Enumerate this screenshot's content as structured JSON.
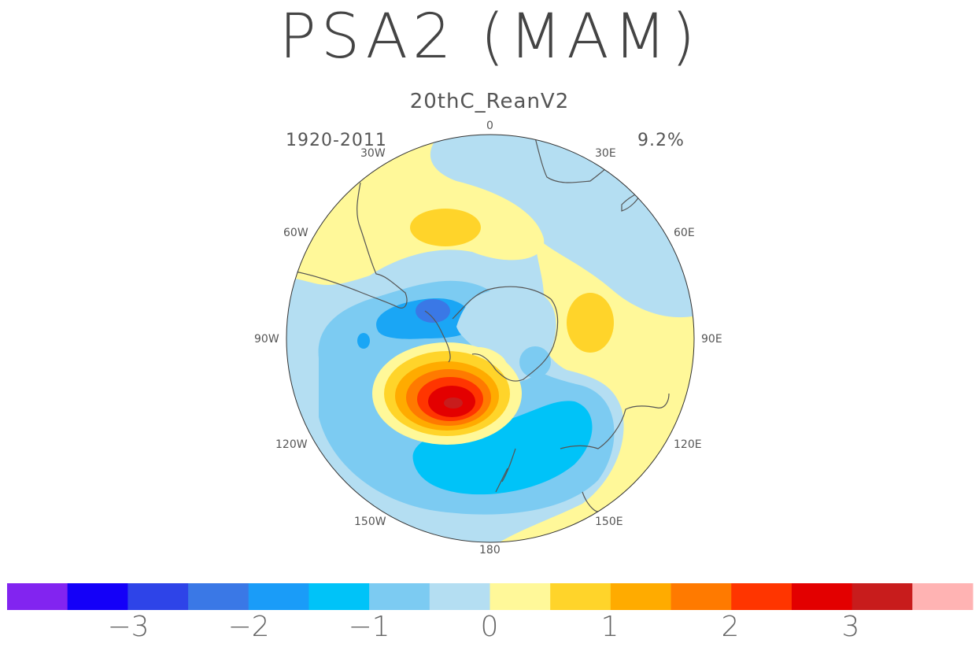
{
  "title": "PSA2 (MAM)",
  "subtitle": "20thC_ReanV2",
  "period": "1920-2011",
  "variance_explained": "9.2%",
  "longitude_labels": {
    "lon_0": "0",
    "lon_30e": "30E",
    "lon_60e": "60E",
    "lon_90e": "90E",
    "lon_120e": "120E",
    "lon_150e": "150E",
    "lon_180": "180",
    "lon_150w": "150W",
    "lon_120w": "120W",
    "lon_90w": "90W",
    "lon_60w": "60W",
    "lon_30w": "30W"
  },
  "colorbar": {
    "colors": [
      "#8224f0",
      "#1400f8",
      "#2e44e8",
      "#3a78e6",
      "#1a9cf8",
      "#00c3f8",
      "#7ccbf2",
      "#b4def2",
      "#fff899",
      "#ffd42a",
      "#ffab00",
      "#ff7a00",
      "#ff3500",
      "#e30000",
      "#c81c1c",
      "#ffb3b3"
    ],
    "tick_labels": [
      "−3",
      "−2",
      "−1",
      "0",
      "1",
      "2",
      "3"
    ]
  },
  "map_colors": {
    "neg_1": "#b4def2",
    "neg_2": "#7ccbf2",
    "neg_3": "#1aa6f5",
    "neg_4": "#00c3f8",
    "neg_5": "#3a78e6",
    "pos_1": "#fff899",
    "pos_2": "#ffd42a",
    "pos_3": "#ffab00",
    "pos_4": "#ff7a00",
    "pos_5": "#ff3500",
    "pos_6": "#e30000",
    "pos_7": "#c81c1c",
    "coast": "#555555"
  }
}
